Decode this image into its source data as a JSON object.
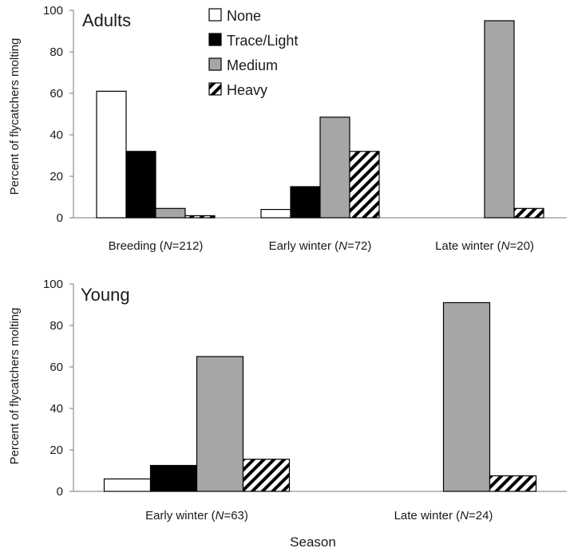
{
  "chart_data": [
    {
      "type": "bar",
      "panel_label": "Adults",
      "ylabel": "Percent of flycatchers molting",
      "ylim": [
        0,
        100
      ],
      "yticks": [
        0,
        20,
        40,
        60,
        80,
        100
      ],
      "categories": [
        {
          "name": "Breeding",
          "n": "212"
        },
        {
          "name": "Early winter",
          "n": "72"
        },
        {
          "name": "Late winter",
          "n": "20"
        }
      ],
      "series": [
        {
          "name": "None",
          "values": [
            61,
            4,
            null
          ]
        },
        {
          "name": "Trace/Light",
          "values": [
            32,
            15,
            null
          ]
        },
        {
          "name": "Medium",
          "values": [
            4.5,
            48.5,
            95
          ]
        },
        {
          "name": "Heavy",
          "values": [
            1,
            32,
            4.5
          ]
        }
      ],
      "legend": {
        "position": "top-left",
        "entries": [
          "None",
          "Trace/Light",
          "Medium",
          "Heavy"
        ]
      },
      "grid": false
    },
    {
      "type": "bar",
      "panel_label": "Young",
      "ylabel": "Percent of flycatchers molting",
      "xlabel": "Season",
      "ylim": [
        0,
        100
      ],
      "yticks": [
        0,
        20,
        40,
        60,
        80,
        100
      ],
      "categories": [
        {
          "name": "Early winter",
          "n": "63"
        },
        {
          "name": "Late winter",
          "n": "24"
        }
      ],
      "series": [
        {
          "name": "None",
          "values": [
            6,
            null
          ]
        },
        {
          "name": "Trace/Light",
          "values": [
            12.5,
            null
          ]
        },
        {
          "name": "Medium",
          "values": [
            65,
            91
          ]
        },
        {
          "name": "Heavy",
          "values": [
            15.5,
            7.5
          ]
        }
      ],
      "grid": false
    }
  ],
  "style": {
    "series_fills": {
      "None": "#ffffff",
      "Trace/Light": "#000000",
      "Medium": "#a6a6a6",
      "Heavy": "hatch"
    },
    "bar_stroke": "#000000"
  },
  "n_prefix": "N",
  "n_separator": "="
}
